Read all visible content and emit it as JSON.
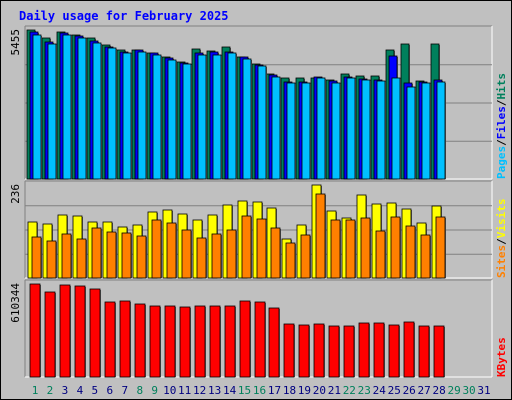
{
  "title": "Daily usage for February 2025",
  "colors": {
    "hits": "#00805c",
    "files": "#0000ff",
    "pages": "#00c0ff",
    "visits": "#ffff00",
    "sites": "#ff8000",
    "kbytes": "#ff0000",
    "weekend": "#00805c",
    "weekday": "#000080"
  },
  "chart_data": [
    {
      "type": "bar",
      "title": "Daily usage for February 2025",
      "x": [
        1,
        2,
        3,
        4,
        5,
        6,
        7,
        8,
        9,
        10,
        11,
        12,
        13,
        14,
        15,
        16,
        17,
        18,
        19,
        20,
        21,
        22,
        23,
        24,
        25,
        26,
        27,
        28
      ],
      "weekend_days": [
        1,
        2,
        8,
        9,
        15,
        16,
        22,
        23,
        29,
        30
      ],
      "ymax_label": "5455",
      "ylabels": [
        {
          "text": "Pages",
          "color": "#00c0ff"
        },
        {
          "text": "Files",
          "color": "#0000ff"
        },
        {
          "text": "Hits",
          "color": "#00805c"
        }
      ],
      "series": [
        {
          "name": "Hits",
          "values": [
            5455,
            5150,
            5370,
            5280,
            5150,
            4900,
            4740,
            4740,
            4620,
            4470,
            4280,
            4750,
            4670,
            4830,
            4470,
            4200,
            3830,
            3700,
            3700,
            3700,
            3620,
            3860,
            3770,
            3770,
            4720,
            4950,
            3570,
            4950
          ]
        },
        {
          "name": "Files",
          "values": [
            5380,
            5030,
            5330,
            5250,
            5070,
            4830,
            4650,
            4710,
            4600,
            4420,
            4260,
            4600,
            4640,
            4650,
            4450,
            4180,
            3790,
            3540,
            3550,
            3740,
            3570,
            3740,
            3660,
            3630,
            4490,
            3500,
            3550,
            3610
          ]
        },
        {
          "name": "Pages",
          "values": [
            5260,
            4930,
            5260,
            5170,
            4990,
            4780,
            4610,
            4650,
            4530,
            4350,
            4210,
            4530,
            4550,
            4600,
            4390,
            4120,
            3740,
            3500,
            3510,
            3700,
            3520,
            3690,
            3610,
            3580,
            3710,
            3380,
            3510,
            3550
          ]
        }
      ]
    },
    {
      "type": "bar",
      "x": [
        1,
        2,
        3,
        4,
        5,
        6,
        7,
        8,
        9,
        10,
        11,
        12,
        13,
        14,
        15,
        16,
        17,
        18,
        19,
        20,
        21,
        22,
        23,
        24,
        25,
        26,
        27,
        28
      ],
      "ymax_label": "236",
      "ylabels": [
        {
          "text": "Sites",
          "color": "#ff8000"
        },
        {
          "text": "Visits",
          "color": "#ffff00"
        }
      ],
      "series": [
        {
          "name": "Visits",
          "values": [
            143,
            137,
            160,
            158,
            143,
            141,
            129,
            135,
            168,
            173,
            163,
            148,
            160,
            184,
            196,
            193,
            178,
            100,
            134,
            236,
            171,
            153,
            210,
            187,
            190,
            174,
            140,
            183
          ]
        },
        {
          "name": "Sites",
          "values": [
            105,
            93,
            111,
            99,
            127,
            116,
            115,
            106,
            146,
            140,
            122,
            102,
            111,
            121,
            157,
            149,
            128,
            90,
            110,
            213,
            146,
            148,
            153,
            118,
            155,
            131,
            108,
            154
          ]
        }
      ]
    },
    {
      "type": "bar",
      "x": [
        1,
        2,
        3,
        4,
        5,
        6,
        7,
        8,
        9,
        10,
        11,
        12,
        13,
        14,
        15,
        16,
        17,
        18,
        19,
        20,
        21,
        22,
        23,
        24,
        25,
        26,
        27,
        28
      ],
      "ymax_label": "610344",
      "ylabels": [
        {
          "text": "KBytes",
          "color": "#ff0000"
        }
      ],
      "series": [
        {
          "name": "KBytes",
          "values": [
            610344,
            556000,
            604000,
            599000,
            576000,
            495000,
            500000,
            481000,
            464000,
            464000,
            458000,
            464000,
            469000,
            469000,
            496000,
            492000,
            456000,
            348000,
            339000,
            348000,
            333000,
            333000,
            353000,
            353000,
            344000,
            361000,
            333000,
            333000
          ]
        }
      ]
    }
  ],
  "x_axis_labels": [
    "1",
    "2",
    "3",
    "4",
    "5",
    "6",
    "7",
    "8",
    "9",
    "10",
    "11",
    "12",
    "13",
    "14",
    "15",
    "16",
    "17",
    "18",
    "19",
    "20",
    "21",
    "22",
    "23",
    "24",
    "25",
    "26",
    "27",
    "28",
    "29",
    "30",
    "31"
  ]
}
